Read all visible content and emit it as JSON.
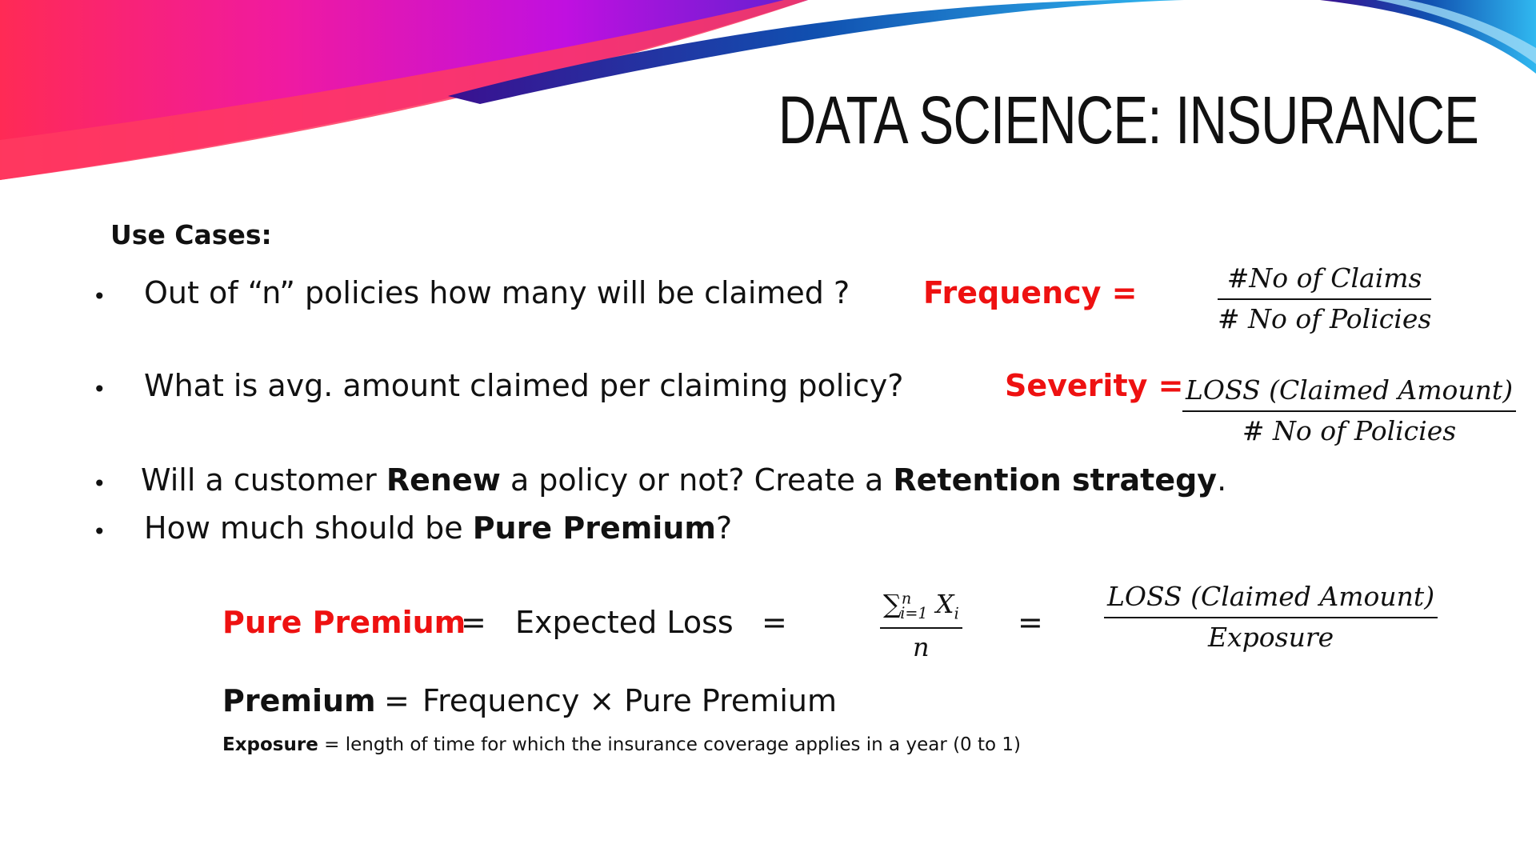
{
  "slide": {
    "title": "DATA SCIENCE: INSURANCE",
    "use_cases_label": "Use Cases:",
    "colors": {
      "accent_red": "#ee1111",
      "swoosh_magenta": "#e010d8",
      "swoosh_pink": "#ff3070",
      "swoosh_blue": "#1060c0",
      "swoosh_cyan": "#30b8f0"
    }
  },
  "bullets": {
    "q1": "Out of “n” policies how many will be claimed ?",
    "q2": "What is avg. amount claimed per claiming policy?",
    "q3": {
      "a": "Will a customer ",
      "b": "Renew",
      "c": " a policy or not? Create a ",
      "d": "Retention strategy",
      "e": "."
    },
    "q4": {
      "a": "How much should be ",
      "b": "Pure Premium",
      "c": "?"
    }
  },
  "formulas": {
    "frequency": {
      "label": "Frequency =",
      "numerator": "#No of Claims",
      "denominator": "# No of Policies"
    },
    "severity": {
      "label": "Severity =",
      "numerator": "LOSS (Claimed Amount)",
      "denominator": "# No of Policies"
    },
    "pure_premium": {
      "label": "Pure Premium",
      "eq1": "=",
      "expected_loss": "Expected Loss",
      "eq2": "=",
      "sum_symbol": "∑",
      "sum_upper": "n",
      "sum_lower": "i=1",
      "sum_var": "X",
      "sum_var_sub": "i",
      "sum_denominator": "n",
      "eq3": "=",
      "loss_numerator": "LOSS (Claimed Amount)",
      "loss_denominator": "Exposure"
    },
    "premium": {
      "label": "Premium",
      "eq": "=",
      "rhs": "Frequency ×  Pure Premium"
    }
  },
  "note": {
    "term": "Exposure",
    "text": " = length of time for which the insurance coverage applies  in a year (0 to 1)"
  },
  "bullet_symbol": "•"
}
